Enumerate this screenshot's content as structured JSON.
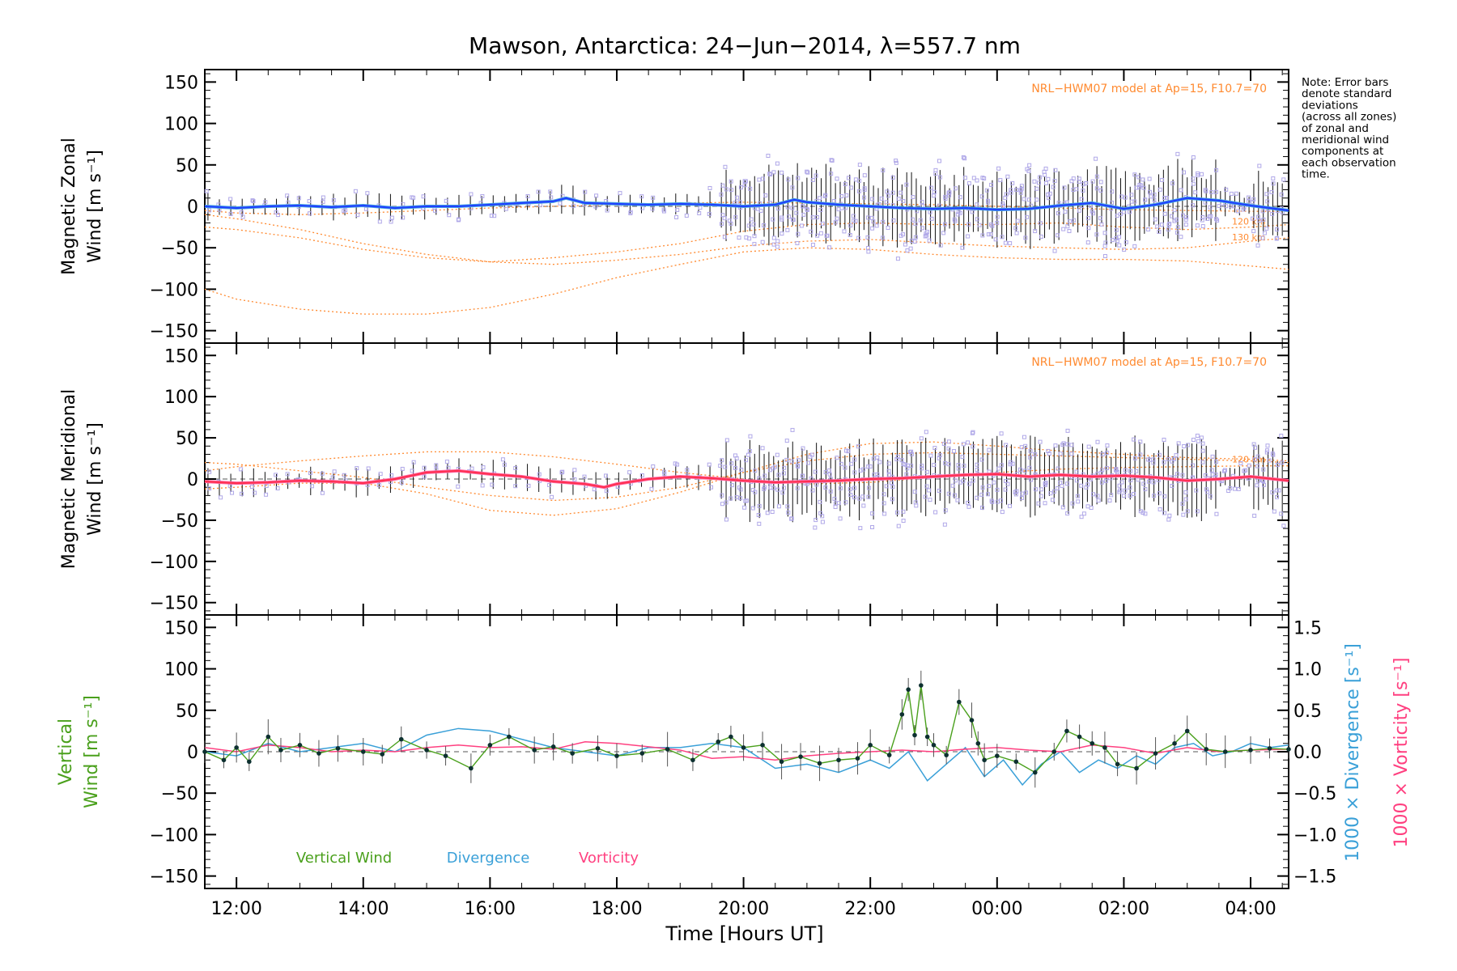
{
  "title": "Mawson, Antarctica: 24−Jun−2014, λ=557.7 nm",
  "note": [
    "Note: Error bars",
    "denote standard",
    "deviations",
    "(across all zones)",
    "of zonal and",
    "meridional wind",
    "components at",
    "each observation",
    "time."
  ],
  "xlabel": "Time [Hours UT]",
  "colors": {
    "zonal": "#2040ff",
    "zonal_light": "#4aa8e0",
    "meridional": "#ff3050",
    "meridional_light": "#ff6aa8",
    "model": "#ff8a30",
    "zone_points": "#b0a8e8",
    "vertical": "#4aa01c",
    "divergence": "#3aa0d8",
    "vorticity": "#ff4080"
  },
  "chart_data": [
    {
      "type": "line",
      "panel": "zonal",
      "ylabel": [
        "Magnetic Zonal",
        "Wind [m s⁻¹]"
      ],
      "ylim": [
        -165,
        165
      ],
      "yticks": [
        150,
        100,
        50,
        0,
        -50,
        -100,
        -150
      ],
      "xlim_hours": [
        11.5,
        28.6
      ],
      "xticks": [
        12,
        14,
        16,
        18,
        20,
        22,
        24,
        26,
        28
      ],
      "xtick_labels": [
        "12:00",
        "14:00",
        "16:00",
        "18:00",
        "20:00",
        "22:00",
        "00:00",
        "02:00",
        "04:00"
      ],
      "model_label": "NRL−HWM07 model at Ap=15, F10.7=70",
      "model_curve_labels": [
        "120 km",
        "130 km"
      ],
      "series": [
        {
          "name": "Magnetic zonal wind",
          "x": [
            11.5,
            12.0,
            12.5,
            13.0,
            13.5,
            14.0,
            14.5,
            15.0,
            15.5,
            16.0,
            16.5,
            17.0,
            17.2,
            17.5,
            18.0,
            18.5,
            19.0,
            19.5,
            20.0,
            20.5,
            20.8,
            21.0,
            21.5,
            22.0,
            22.5,
            23.0,
            23.5,
            24.0,
            24.5,
            25.0,
            25.5,
            26.0,
            26.5,
            27.0,
            27.5,
            28.0,
            28.6
          ],
          "y": [
            0,
            -2,
            0,
            1,
            -1,
            1,
            -2,
            0,
            0,
            2,
            4,
            6,
            10,
            4,
            3,
            2,
            3,
            2,
            0,
            2,
            8,
            5,
            2,
            0,
            -2,
            -3,
            -2,
            -4,
            -3,
            1,
            4,
            -3,
            2,
            10,
            7,
            1,
            -5
          ]
        }
      ],
      "model_curves": [
        {
          "x": [
            11.5,
            12,
            13,
            14,
            15,
            16,
            17,
            18,
            19,
            20,
            21,
            22,
            23,
            24,
            25,
            26,
            27,
            28,
            28.6
          ],
          "y": [
            -25,
            -28,
            -38,
            -52,
            -62,
            -67,
            -62,
            -55,
            -45,
            -30,
            -22,
            -20,
            -22,
            -22,
            -20,
            -25,
            -28,
            -25,
            -22
          ]
        },
        {
          "x": [
            11.5,
            12,
            13,
            14,
            15,
            16,
            17,
            18,
            19,
            20,
            21,
            22,
            23,
            24,
            25,
            26,
            27,
            28,
            28.6
          ],
          "y": [
            -10,
            -15,
            -28,
            -45,
            -58,
            -67,
            -70,
            -65,
            -58,
            -48,
            -42,
            -40,
            -44,
            -48,
            -50,
            -52,
            -50,
            -42,
            -38
          ]
        },
        {
          "x": [
            11.5,
            12,
            13,
            14,
            15,
            16,
            17,
            18,
            19,
            20,
            21,
            22,
            23,
            24,
            25,
            26,
            27,
            28,
            28.6
          ],
          "y": [
            -100,
            -112,
            -124,
            -130,
            -130,
            -122,
            -106,
            -86,
            -70,
            -55,
            -50,
            -52,
            -58,
            -62,
            -64,
            -64,
            -66,
            -72,
            -76
          ]
        },
        {
          "x": [
            11.5,
            12,
            13,
            14,
            15,
            16,
            17,
            18,
            19,
            20,
            21,
            22,
            23,
            24,
            25,
            26,
            27,
            28,
            28.6
          ],
          "y": [
            -5,
            -8,
            -10,
            -8,
            -5,
            -2,
            0,
            2,
            4,
            5,
            4,
            3,
            2,
            0,
            -2,
            -4,
            -5,
            -6,
            -6
          ]
        }
      ]
    },
    {
      "type": "line",
      "panel": "meridional",
      "ylabel": [
        "Magnetic Meridional",
        "Wind [m s⁻¹]"
      ],
      "ylim": [
        -165,
        165
      ],
      "yticks": [
        150,
        100,
        50,
        0,
        -50,
        -100,
        -150
      ],
      "xlim_hours": [
        11.5,
        28.6
      ],
      "model_label": "NRL−HWM07 model at Ap=15, F10.7=70",
      "model_curve_labels": [
        "120 km"
      ],
      "series": [
        {
          "name": "Magnetic meridional wind",
          "x": [
            11.5,
            12.0,
            12.5,
            13.0,
            13.5,
            14.0,
            14.5,
            15.0,
            15.5,
            16.0,
            16.5,
            17.0,
            17.5,
            17.8,
            18.0,
            18.5,
            19.0,
            19.5,
            20.0,
            20.5,
            21.0,
            21.5,
            22.0,
            22.5,
            23.0,
            23.5,
            24.0,
            24.5,
            25.0,
            25.5,
            26.0,
            26.5,
            27.0,
            27.5,
            28.0,
            28.6
          ],
          "y": [
            -3,
            -5,
            -4,
            -2,
            -3,
            -5,
            0,
            8,
            10,
            6,
            3,
            -3,
            -6,
            -10,
            -6,
            0,
            3,
            1,
            -2,
            -4,
            -3,
            -2,
            0,
            1,
            3,
            5,
            6,
            3,
            5,
            3,
            4,
            2,
            -2,
            0,
            3,
            -2
          ]
        }
      ],
      "model_curves": [
        {
          "x": [
            11.5,
            12,
            13,
            14,
            15,
            16,
            17,
            18,
            19,
            20,
            21,
            22,
            23,
            24,
            25,
            26,
            27,
            28,
            28.6
          ],
          "y": [
            20,
            18,
            10,
            2,
            -10,
            -20,
            -26,
            -22,
            -10,
            8,
            22,
            30,
            32,
            30,
            28,
            26,
            24,
            22,
            20
          ]
        },
        {
          "x": [
            11.5,
            12,
            13,
            14,
            15,
            16,
            17,
            18,
            19,
            20,
            21,
            22,
            23,
            24,
            25,
            26,
            27,
            28,
            28.6
          ],
          "y": [
            10,
            15,
            22,
            28,
            33,
            33,
            27,
            18,
            8,
            0,
            -6,
            -4,
            2,
            8,
            12,
            14,
            15,
            16,
            16
          ]
        },
        {
          "x": [
            11.5,
            12,
            13,
            14,
            15,
            16,
            17,
            18,
            19,
            20,
            21,
            22,
            23,
            24,
            25,
            26,
            27,
            28,
            28.6
          ],
          "y": [
            -12,
            -10,
            -5,
            -5,
            -18,
            -38,
            -44,
            -36,
            -16,
            8,
            30,
            43,
            45,
            40,
            34,
            30,
            26,
            24,
            22
          ]
        }
      ]
    },
    {
      "type": "line",
      "panel": "vertical",
      "ylabel": [
        "Vertical",
        "Wind [m s⁻¹]"
      ],
      "ylim": [
        -165,
        165
      ],
      "yticks": [
        150,
        100,
        50,
        0,
        -50,
        -100,
        -150
      ],
      "y2label": [
        "1000 × Divergence [s⁻¹]",
        "1000 × Vorticity [s⁻¹]"
      ],
      "y2lim": [
        -1.65,
        1.65
      ],
      "y2ticks": [
        1.5,
        1.0,
        0.5,
        0.0,
        -0.5,
        -1.0,
        -1.5
      ],
      "y2tick_labels": [
        "1.5",
        "1.0",
        "0.5",
        "0.0",
        "−0.5",
        "−1.0",
        "−1.5"
      ],
      "legend": [
        "Vertical Wind",
        "Divergence",
        "Vorticity"
      ],
      "series": [
        {
          "name": "Vertical Wind",
          "axis": "left",
          "x": [
            11.5,
            11.8,
            12.0,
            12.2,
            12.5,
            12.7,
            13.0,
            13.3,
            13.6,
            14.0,
            14.3,
            14.6,
            15.0,
            15.3,
            15.7,
            16.0,
            16.3,
            16.7,
            17.0,
            17.3,
            17.7,
            18.0,
            18.4,
            18.8,
            19.2,
            19.6,
            19.8,
            20.0,
            20.3,
            20.6,
            20.9,
            21.2,
            21.5,
            21.8,
            22.0,
            22.3,
            22.5,
            22.6,
            22.7,
            22.8,
            22.9,
            23.0,
            23.2,
            23.4,
            23.6,
            23.7,
            23.8,
            24.0,
            24.3,
            24.6,
            24.9,
            25.1,
            25.3,
            25.5,
            25.7,
            25.9,
            26.2,
            26.5,
            26.8,
            27.0,
            27.3,
            27.6,
            28.0,
            28.3,
            28.6
          ],
          "y": [
            0,
            -10,
            5,
            -12,
            18,
            2,
            8,
            -2,
            4,
            0,
            -3,
            15,
            2,
            -5,
            -20,
            8,
            18,
            2,
            6,
            -2,
            4,
            -5,
            -2,
            3,
            -10,
            12,
            18,
            5,
            8,
            -12,
            -6,
            -14,
            -10,
            -8,
            8,
            -4,
            45,
            75,
            20,
            80,
            18,
            8,
            -4,
            60,
            38,
            10,
            -10,
            -5,
            -12,
            -25,
            0,
            25,
            18,
            10,
            5,
            -15,
            -20,
            -2,
            10,
            25,
            3,
            0,
            2,
            4,
            3
          ]
        },
        {
          "name": "Divergence",
          "axis": "right",
          "x": [
            11.5,
            12,
            12.5,
            13,
            13.5,
            14,
            14.5,
            15,
            15.5,
            16,
            16.5,
            17,
            17.5,
            18,
            18.5,
            19,
            19.5,
            20,
            20.5,
            21,
            21.5,
            22,
            22.3,
            22.6,
            22.9,
            23.2,
            23.5,
            23.8,
            24.1,
            24.4,
            24.7,
            25,
            25.3,
            25.6,
            25.9,
            26.2,
            26.5,
            26.8,
            27.1,
            27.4,
            27.7,
            28,
            28.3,
            28.6
          ],
          "y": [
            0.0,
            -0.05,
            0.1,
            0.0,
            0.05,
            0.1,
            0.0,
            0.2,
            0.28,
            0.25,
            0.15,
            0.05,
            0.0,
            -0.05,
            0.05,
            0.05,
            0.1,
            0.05,
            -0.2,
            -0.15,
            -0.25,
            -0.1,
            -0.2,
            0.0,
            -0.35,
            -0.15,
            0.05,
            -0.3,
            -0.1,
            -0.4,
            -0.15,
            0.0,
            -0.25,
            -0.1,
            -0.2,
            -0.05,
            -0.15,
            0.05,
            0.1,
            -0.05,
            0.0,
            0.1,
            0.05,
            0.08
          ]
        },
        {
          "name": "Vorticity",
          "axis": "right",
          "x": [
            11.5,
            12,
            12.5,
            13,
            13.5,
            14,
            14.5,
            15,
            15.5,
            16,
            16.5,
            17,
            17.5,
            18,
            18.5,
            19,
            19.5,
            20,
            20.5,
            21,
            21.5,
            22,
            22.5,
            23,
            23.5,
            24,
            24.5,
            25,
            25.5,
            26,
            26.5,
            27,
            27.5,
            28,
            28.6
          ],
          "y": [
            0.05,
            0.0,
            0.08,
            0.05,
            0.0,
            0.02,
            0.0,
            0.05,
            0.08,
            0.05,
            0.06,
            0.03,
            0.12,
            0.1,
            0.06,
            0.02,
            -0.08,
            -0.06,
            -0.1,
            -0.05,
            -0.02,
            0.0,
            0.02,
            0.0,
            0.03,
            0.05,
            0.02,
            0.0,
            0.08,
            0.05,
            -0.02,
            0.05,
            0.0,
            0.02,
            0.03
          ]
        }
      ]
    }
  ]
}
